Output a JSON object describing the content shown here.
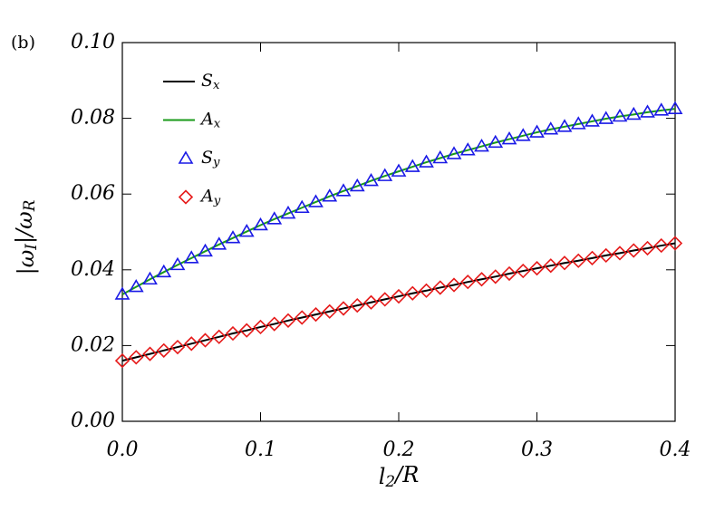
{
  "chart_data": {
    "type": "line",
    "panel_label": "(b)",
    "xlabel": "l_2/R",
    "ylabel": "|ω_I|/ω_R",
    "x": [
      0,
      0.01,
      0.02,
      0.03,
      0.04,
      0.05,
      0.06,
      0.07,
      0.08,
      0.09,
      0.1,
      0.11,
      0.12,
      0.13,
      0.14,
      0.15,
      0.16,
      0.17,
      0.18,
      0.19,
      0.2,
      0.21,
      0.22,
      0.23,
      0.24,
      0.25,
      0.26,
      0.27,
      0.28,
      0.29,
      0.3,
      0.31,
      0.32,
      0.33,
      0.34,
      0.35,
      0.36,
      0.37,
      0.38,
      0.39,
      0.4
    ],
    "series": [
      {
        "name": "S_x",
        "color": "#000000",
        "style": "line",
        "values": [
          0.016,
          0.0169,
          0.0178,
          0.0187,
          0.0196,
          0.0205,
          0.0214,
          0.0223,
          0.0232,
          0.024,
          0.0249,
          0.0257,
          0.0266,
          0.0274,
          0.0282,
          0.029,
          0.0298,
          0.0306,
          0.0314,
          0.0322,
          0.033,
          0.0338,
          0.0345,
          0.0353,
          0.036,
          0.0368,
          0.0375,
          0.0382,
          0.039,
          0.0397,
          0.0404,
          0.0411,
          0.0418,
          0.0424,
          0.0431,
          0.0438,
          0.0444,
          0.0451,
          0.0457,
          0.0464,
          0.047
        ]
      },
      {
        "name": "A_x",
        "color": "#1a9a1a",
        "style": "line",
        "values": [
          0.0335,
          0.0355,
          0.0375,
          0.0394,
          0.0413,
          0.0431,
          0.0449,
          0.0467,
          0.0484,
          0.0501,
          0.0518,
          0.0534,
          0.0549,
          0.0564,
          0.0579,
          0.0594,
          0.0608,
          0.0621,
          0.0635,
          0.0648,
          0.066,
          0.0672,
          0.0684,
          0.0695,
          0.0706,
          0.0716,
          0.0726,
          0.0736,
          0.0745,
          0.0754,
          0.0763,
          0.0771,
          0.0778,
          0.0785,
          0.0792,
          0.0799,
          0.0805,
          0.081,
          0.0816,
          0.0821,
          0.0825
        ]
      },
      {
        "name": "S_y",
        "color": "#1a1ae6",
        "style": "marker",
        "marker": "triangle",
        "values": [
          0.0335,
          0.0355,
          0.0375,
          0.0394,
          0.0413,
          0.0431,
          0.0449,
          0.0467,
          0.0484,
          0.0501,
          0.0518,
          0.0534,
          0.0549,
          0.0564,
          0.0579,
          0.0594,
          0.0608,
          0.0621,
          0.0635,
          0.0648,
          0.066,
          0.0672,
          0.0684,
          0.0695,
          0.0706,
          0.0716,
          0.0726,
          0.0736,
          0.0745,
          0.0754,
          0.0763,
          0.0771,
          0.0778,
          0.0785,
          0.0792,
          0.0799,
          0.0805,
          0.081,
          0.0816,
          0.0821,
          0.0825
        ]
      },
      {
        "name": "A_y",
        "color": "#e61a1a",
        "style": "marker",
        "marker": "diamond",
        "values": [
          0.016,
          0.0169,
          0.0178,
          0.0187,
          0.0196,
          0.0205,
          0.0214,
          0.0223,
          0.0232,
          0.024,
          0.0249,
          0.0257,
          0.0266,
          0.0274,
          0.0282,
          0.029,
          0.0298,
          0.0306,
          0.0314,
          0.0322,
          0.033,
          0.0338,
          0.0345,
          0.0353,
          0.036,
          0.0368,
          0.0375,
          0.0382,
          0.039,
          0.0397,
          0.0404,
          0.0411,
          0.0418,
          0.0424,
          0.0431,
          0.0438,
          0.0444,
          0.0451,
          0.0457,
          0.0464,
          0.047
        ]
      }
    ],
    "xlim": [
      0,
      0.4
    ],
    "xticks": [
      {
        "value": 0,
        "label": "0.0"
      },
      0.1,
      0.2,
      0.3,
      0.4
    ],
    "ylim": [
      0,
      0.1
    ],
    "yticks": [
      {
        "value": 0,
        "label": "0.00"
      },
      {
        "value": 0.02,
        "label": "0.02"
      },
      {
        "value": 0.04,
        "label": "0.04"
      },
      {
        "value": 0.06,
        "label": "0.06"
      },
      {
        "value": 0.08,
        "label": "0.08"
      },
      {
        "value": 0.1,
        "label": "0.10"
      }
    ],
    "grid": false,
    "legend": "upper left"
  }
}
